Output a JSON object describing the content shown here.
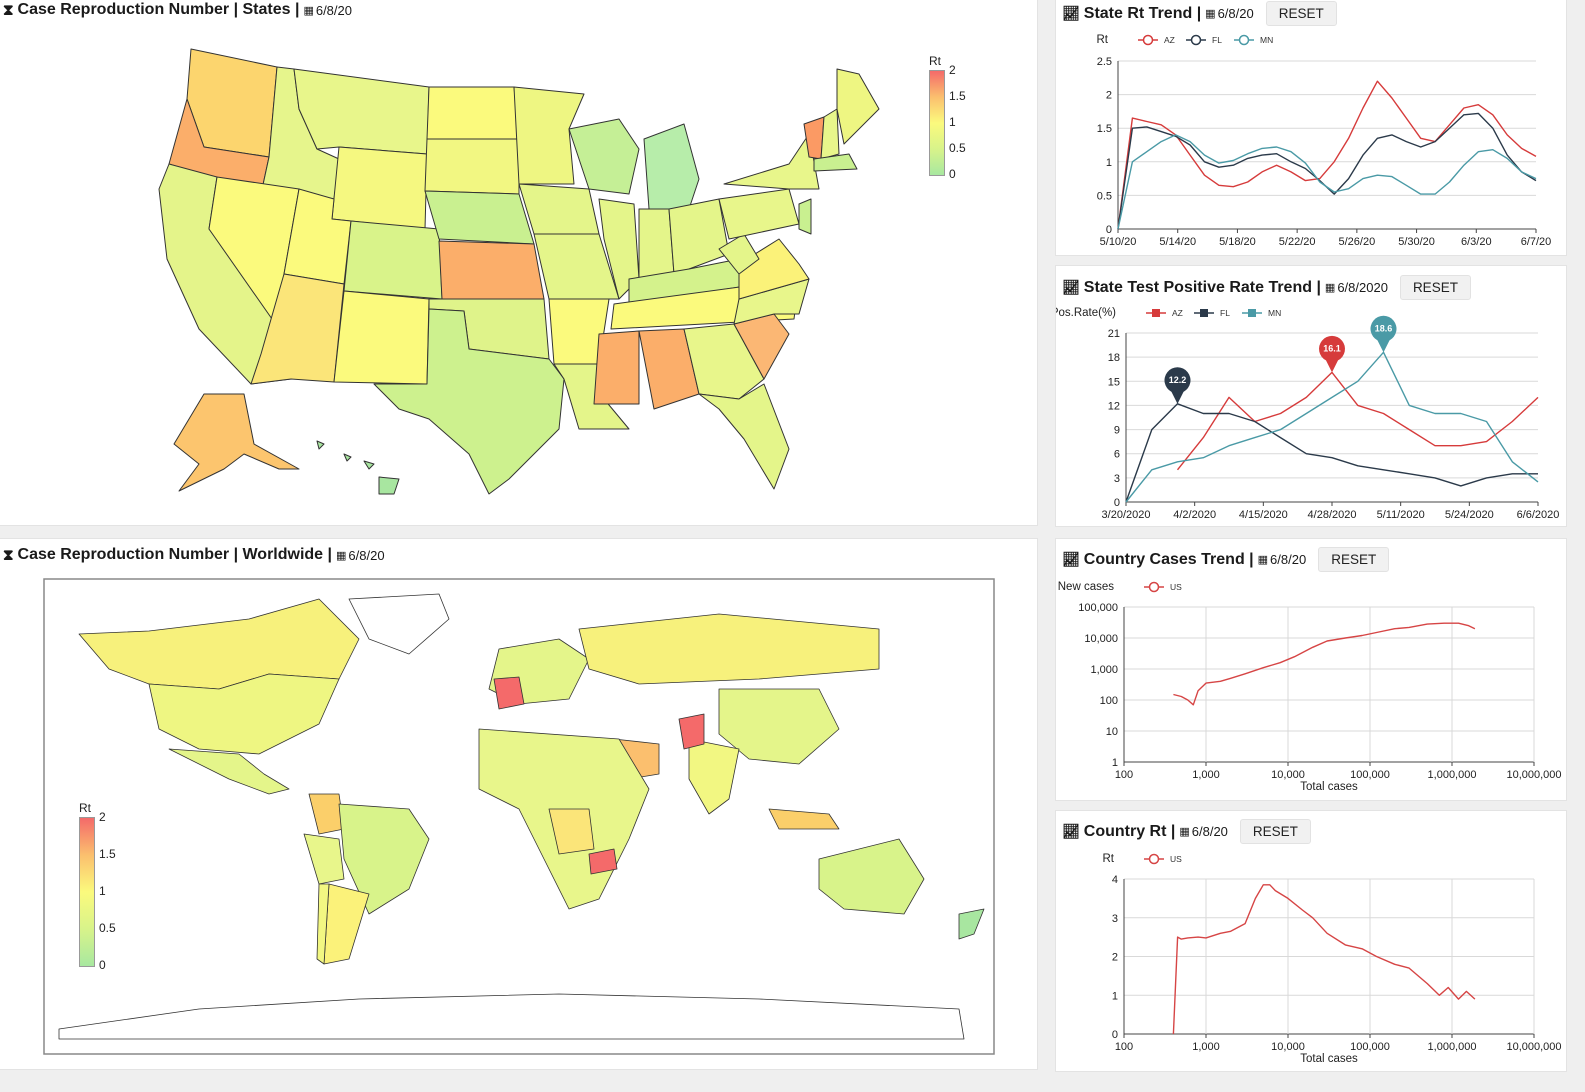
{
  "panels": {
    "states": {
      "title": "Case Reproduction Number | States |",
      "date": "6/8/20"
    },
    "world": {
      "title": "Case Reproduction Number | Worldwide |",
      "date": "6/8/20"
    },
    "state_rt": {
      "title": "State Rt Trend |",
      "date": "6/8/20",
      "reset": "RESET"
    },
    "state_pos": {
      "title": "State Test Positive Rate Trend |",
      "date": "6/8/2020",
      "reset": "RESET"
    },
    "country_cases": {
      "title": "Country Cases Trend |",
      "date": "6/8/20",
      "reset": "RESET"
    },
    "country_rt": {
      "title": "Country Rt |",
      "date": "6/8/20",
      "reset": "RESET"
    }
  },
  "colorbar": {
    "title": "Rt",
    "ticks": [
      "2",
      "1.5",
      "1",
      "0.5",
      "0"
    ]
  },
  "colors": {
    "az": "#d63b3b",
    "fl": "#2b3a4a",
    "mn": "#4a9aa6",
    "us": "#d64545",
    "grid": "#d9d9d9"
  },
  "icons": {
    "title_icon": "hourglass-icon",
    "trend_icon": "line-chart-icon",
    "date_icon": "calendar-icon"
  },
  "chart_data": [
    {
      "id": "state_rt",
      "type": "line",
      "title": "State Rt Trend",
      "ylabel": "Rt",
      "ylim": [
        0,
        2.5
      ],
      "yticks": [
        "0",
        "0.5",
        "1",
        "1.5",
        "2",
        "2.5"
      ],
      "xticks": [
        "5/10/20",
        "5/14/20",
        "5/18/20",
        "5/22/20",
        "5/26/20",
        "5/30/20",
        "6/3/20",
        "6/7/20"
      ],
      "x": [
        "5/10/20",
        "5/11/20",
        "5/12/20",
        "5/13/20",
        "5/14/20",
        "5/15/20",
        "5/16/20",
        "5/17/20",
        "5/18/20",
        "5/19/20",
        "5/20/20",
        "5/21/20",
        "5/22/20",
        "5/23/20",
        "5/24/20",
        "5/25/20",
        "5/26/20",
        "5/27/20",
        "5/28/20",
        "5/29/20",
        "5/30/20",
        "5/31/20",
        "6/1/20",
        "6/2/20",
        "6/3/20",
        "6/4/20",
        "6/5/20",
        "6/6/20",
        "6/7/20",
        "6/8/20"
      ],
      "series": [
        {
          "name": "AZ",
          "color_key": "az",
          "values": [
            0,
            1.65,
            1.6,
            1.55,
            1.4,
            1.1,
            0.8,
            0.65,
            0.63,
            0.7,
            0.85,
            0.95,
            0.85,
            0.72,
            0.75,
            1.0,
            1.35,
            1.8,
            2.2,
            1.95,
            1.65,
            1.35,
            1.3,
            1.55,
            1.8,
            1.85,
            1.7,
            1.4,
            1.2,
            1.08
          ]
        },
        {
          "name": "FL",
          "color_key": "fl",
          "values": [
            0,
            1.5,
            1.52,
            1.45,
            1.38,
            1.25,
            1.0,
            0.92,
            0.95,
            1.05,
            1.1,
            1.12,
            1.0,
            0.9,
            0.72,
            0.52,
            0.75,
            1.1,
            1.35,
            1.4,
            1.3,
            1.22,
            1.3,
            1.5,
            1.7,
            1.72,
            1.5,
            1.1,
            0.85,
            0.72
          ]
        },
        {
          "name": "MN",
          "color_key": "mn",
          "values": [
            0,
            1.0,
            1.15,
            1.3,
            1.4,
            1.3,
            1.1,
            0.98,
            1.02,
            1.12,
            1.2,
            1.22,
            1.15,
            0.98,
            0.7,
            0.55,
            0.6,
            0.75,
            0.8,
            0.78,
            0.65,
            0.52,
            0.52,
            0.7,
            0.95,
            1.15,
            1.18,
            1.05,
            0.85,
            0.75
          ]
        }
      ]
    },
    {
      "id": "state_pos",
      "type": "line",
      "title": "State Test Positive Rate Trend",
      "ylabel": "Pos.Rate(%)",
      "ylim": [
        0,
        21
      ],
      "yticks": [
        "0",
        "3",
        "6",
        "9",
        "12",
        "15",
        "18",
        "21"
      ],
      "xticks": [
        "3/20/2020",
        "4/2/2020",
        "4/15/2020",
        "4/28/2020",
        "5/11/2020",
        "5/24/2020",
        "6/6/2020"
      ],
      "x": [
        "3/20",
        "3/25",
        "3/30",
        "4/4",
        "4/9",
        "4/14",
        "4/19",
        "4/24",
        "4/29",
        "5/4",
        "5/9",
        "5/14",
        "5/19",
        "5/24",
        "5/29",
        "6/3",
        "6/8"
      ],
      "series": [
        {
          "name": "AZ",
          "color_key": "az",
          "values": [
            null,
            null,
            4,
            8,
            13,
            10,
            11,
            13,
            16.1,
            12,
            11,
            9,
            7,
            7,
            7.5,
            10,
            13
          ]
        },
        {
          "name": "FL",
          "color_key": "fl",
          "values": [
            0,
            9,
            12.2,
            11,
            11,
            10,
            8,
            6,
            5.5,
            4.5,
            4,
            3.5,
            3,
            2,
            3,
            3.5,
            3.5
          ]
        },
        {
          "name": "MN",
          "color_key": "mn",
          "values": [
            0,
            4,
            5,
            5.5,
            7,
            8,
            9,
            11,
            13,
            15,
            18.6,
            12,
            11,
            11,
            10,
            5,
            2.5
          ]
        }
      ],
      "annotations": [
        {
          "series": "FL",
          "label": "12.2"
        },
        {
          "series": "AZ",
          "label": "16.1"
        },
        {
          "series": "MN",
          "label": "18.6"
        }
      ]
    },
    {
      "id": "country_cases",
      "type": "line",
      "title": "Country Cases Trend",
      "xlabel": "Total cases",
      "ylabel": "New cases",
      "log_x": true,
      "log_y": true,
      "xticks": [
        "100",
        "1,000",
        "10,000",
        "100,000",
        "1,000,000",
        "10,000,000"
      ],
      "yticks": [
        "1",
        "10",
        "100",
        "1,000",
        "10,000",
        "100,000"
      ],
      "series": [
        {
          "name": "US",
          "color_key": "us",
          "x": [
            400,
            500,
            600,
            700,
            800,
            1000,
            1500,
            2000,
            3000,
            5000,
            8000,
            12000,
            20000,
            30000,
            50000,
            80000,
            120000,
            200000,
            300000,
            500000,
            800000,
            1200000,
            1600000,
            1900000
          ],
          "y": [
            150,
            130,
            100,
            70,
            200,
            350,
            400,
            500,
            700,
            1100,
            1600,
            2500,
            5000,
            8000,
            10000,
            12000,
            15000,
            20000,
            22000,
            28000,
            30000,
            30000,
            25000,
            20000
          ]
        }
      ]
    },
    {
      "id": "country_rt",
      "type": "line",
      "title": "Country Rt",
      "xlabel": "Total cases",
      "ylabel": "Rt",
      "log_x": true,
      "ylim": [
        0,
        4
      ],
      "xticks": [
        "100",
        "1,000",
        "10,000",
        "100,000",
        "1,000,000",
        "10,000,000"
      ],
      "yticks": [
        "0",
        "1",
        "2",
        "3",
        "4"
      ],
      "series": [
        {
          "name": "US",
          "color_key": "us",
          "x": [
            400,
            450,
            500,
            600,
            800,
            1000,
            1500,
            2000,
            3000,
            4000,
            5000,
            6000,
            7000,
            10000,
            15000,
            20000,
            30000,
            50000,
            80000,
            120000,
            200000,
            300000,
            500000,
            700000,
            900000,
            1200000,
            1500000,
            1900000
          ],
          "y": [
            0,
            2.5,
            2.45,
            2.48,
            2.5,
            2.48,
            2.6,
            2.65,
            2.85,
            3.5,
            3.85,
            3.85,
            3.7,
            3.5,
            3.2,
            3.0,
            2.6,
            2.3,
            2.2,
            2.0,
            1.8,
            1.7,
            1.3,
            1.0,
            1.2,
            0.9,
            1.1,
            0.9
          ]
        }
      ]
    }
  ]
}
